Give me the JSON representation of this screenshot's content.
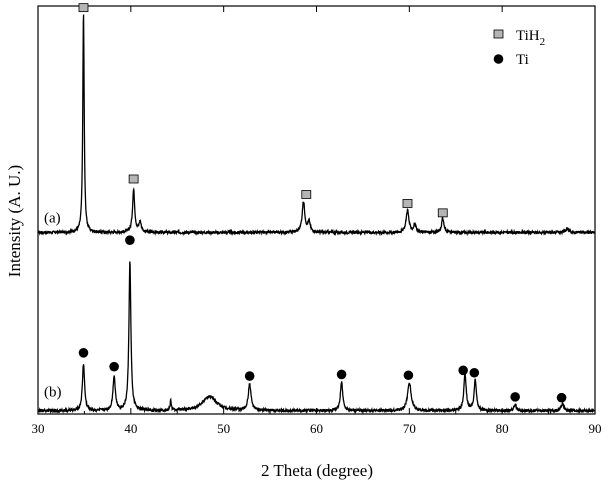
{
  "chart_data": {
    "type": "line",
    "title": "",
    "xlabel": "2 Theta (degree)",
    "ylabel": "Intensity (A. U.)",
    "xlim": [
      30,
      90
    ],
    "xticks": [
      30,
      40,
      50,
      60,
      70,
      80,
      90
    ],
    "ylim": [
      0,
      100
    ],
    "yticks_shown": false,
    "grid": false,
    "legend": {
      "placement": "top-right",
      "entries": [
        {
          "label": "TiH",
          "subscript": "2",
          "marker": "square",
          "color": "#b5b5b5"
        },
        {
          "label": "Ti",
          "marker": "circle",
          "color": "#000000"
        }
      ]
    },
    "series": [
      {
        "label": "(a)",
        "baseline": 44.5,
        "peaks": [
          {
            "x": 34.9,
            "height": 54,
            "width": 0.18
          },
          {
            "x": 40.3,
            "height": 10.5,
            "width": 0.28
          },
          {
            "x": 41.0,
            "height": 2.5,
            "width": 0.3
          },
          {
            "x": 58.6,
            "height": 7.5,
            "width": 0.35
          },
          {
            "x": 59.2,
            "height": 2.5,
            "width": 0.3
          },
          {
            "x": 69.8,
            "height": 5.5,
            "width": 0.35
          },
          {
            "x": 70.6,
            "height": 2,
            "width": 0.3
          },
          {
            "x": 73.6,
            "height": 3.5,
            "width": 0.3
          },
          {
            "x": 87.0,
            "height": 0.8,
            "width": 0.4
          }
        ],
        "markers": {
          "type": "square",
          "x": [
            34.9,
            40.3,
            58.9,
            69.8,
            73.6
          ],
          "y": [
            99.6,
            57.6,
            53.8,
            51.6,
            49.3
          ]
        }
      },
      {
        "label": "(b)",
        "baseline": 0.8,
        "peaks": [
          {
            "x": 34.9,
            "height": 11.5,
            "width": 0.28
          },
          {
            "x": 38.2,
            "height": 8.5,
            "width": 0.3
          },
          {
            "x": 39.9,
            "height": 36.5,
            "width": 0.25
          },
          {
            "x": 44.3,
            "height": 2.5,
            "width": 0.15
          },
          {
            "x": 48.5,
            "height": 3.5,
            "width": 1.8
          },
          {
            "x": 52.8,
            "height": 6.5,
            "width": 0.35
          },
          {
            "x": 62.7,
            "height": 7,
            "width": 0.3
          },
          {
            "x": 70.0,
            "height": 7,
            "width": 0.45
          },
          {
            "x": 76.0,
            "height": 9,
            "width": 0.3
          },
          {
            "x": 77.1,
            "height": 7.5,
            "width": 0.3
          },
          {
            "x": 81.4,
            "height": 1.5,
            "width": 0.3
          },
          {
            "x": 86.5,
            "height": 2,
            "width": 0.3
          }
        ],
        "markers": {
          "type": "circle",
          "x": [
            34.9,
            38.2,
            39.9,
            52.8,
            62.7,
            69.9,
            75.8,
            77.0,
            81.4,
            86.4
          ],
          "y": [
            15.0,
            11.6,
            42.6,
            9.3,
            9.7,
            9.5,
            10.7,
            10.1,
            4.2,
            4.0
          ]
        }
      }
    ]
  }
}
